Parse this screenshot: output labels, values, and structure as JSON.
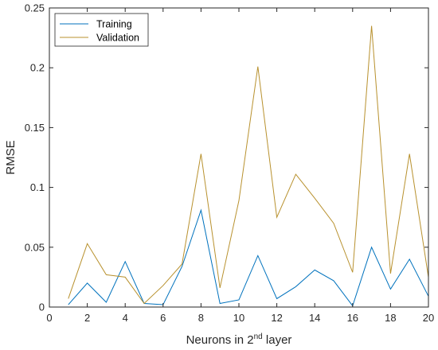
{
  "chart_data": {
    "type": "line",
    "title": "",
    "xlabel_main": "Neurons in 2",
    "xlabel_sup": "nd",
    "xlabel_tail": " layer",
    "ylabel": "RMSE",
    "xlim": [
      0,
      20
    ],
    "ylim": [
      0,
      0.25
    ],
    "xticks": [
      "0",
      "2",
      "4",
      "6",
      "8",
      "10",
      "12",
      "14",
      "16",
      "18",
      "20"
    ],
    "yticks": [
      "0",
      "0.05",
      "0.1",
      "0.15",
      "0.2",
      "0.25"
    ],
    "grid": false,
    "legend_position": "top-left",
    "x": [
      1,
      2,
      3,
      4,
      5,
      6,
      7,
      8,
      9,
      10,
      11,
      12,
      13,
      14,
      15,
      16,
      17,
      18,
      19,
      20
    ],
    "series": [
      {
        "name": "Training",
        "color": "#0072BD",
        "values": [
          0.002,
          0.02,
          0.004,
          0.038,
          0.003,
          0.002,
          0.034,
          0.081,
          0.003,
          0.006,
          0.043,
          0.007,
          0.017,
          0.031,
          0.022,
          0.001,
          0.05,
          0.015,
          0.04,
          0.009
        ]
      },
      {
        "name": "Validation",
        "color": "#D95319",
        "line_color": "#B8912E",
        "values": [
          0.007,
          0.053,
          0.027,
          0.025,
          0.003,
          0.018,
          0.036,
          0.128,
          0.016,
          0.089,
          0.201,
          0.075,
          0.111,
          0.091,
          0.07,
          0.029,
          0.235,
          0.028,
          0.128,
          0.025
        ]
      }
    ]
  }
}
